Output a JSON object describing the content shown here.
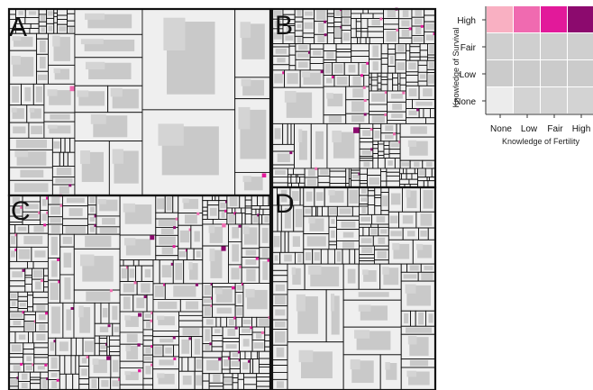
{
  "figure": {
    "panels": [
      {
        "letter": "A"
      },
      {
        "letter": "B"
      },
      {
        "letter": "C"
      },
      {
        "letter": "D"
      }
    ],
    "legend": {
      "x_axis_label": "Knowledge of Fertility",
      "y_axis_label": "Knowledge of Survival",
      "x_ticks": [
        "None",
        "Low",
        "Fair",
        "High"
      ],
      "y_ticks": [
        "High",
        "Fair",
        "Low",
        "None"
      ],
      "grid": [
        [
          "#f9b0c2",
          "#f06ab0",
          "#e2199a",
          "#8c0a6e"
        ],
        [
          "#cfcfcf",
          "#cfcfcf",
          "#cfcfcf",
          "#cfcfcf"
        ],
        [
          "#cbcbcb",
          "#cbcbcb",
          "#cbcbcb",
          "#cbcbcb"
        ],
        [
          "#ececec",
          "#d3d3d3",
          "#d3d3d3",
          "#d3d3d3"
        ]
      ]
    },
    "colors": {
      "cell_background": "#efefef",
      "inner_block": "#c9c9c9",
      "border": "#111111",
      "accent_light": "#f06ab0",
      "accent_mid": "#e2199a",
      "accent_dark": "#8c0a6e"
    }
  }
}
